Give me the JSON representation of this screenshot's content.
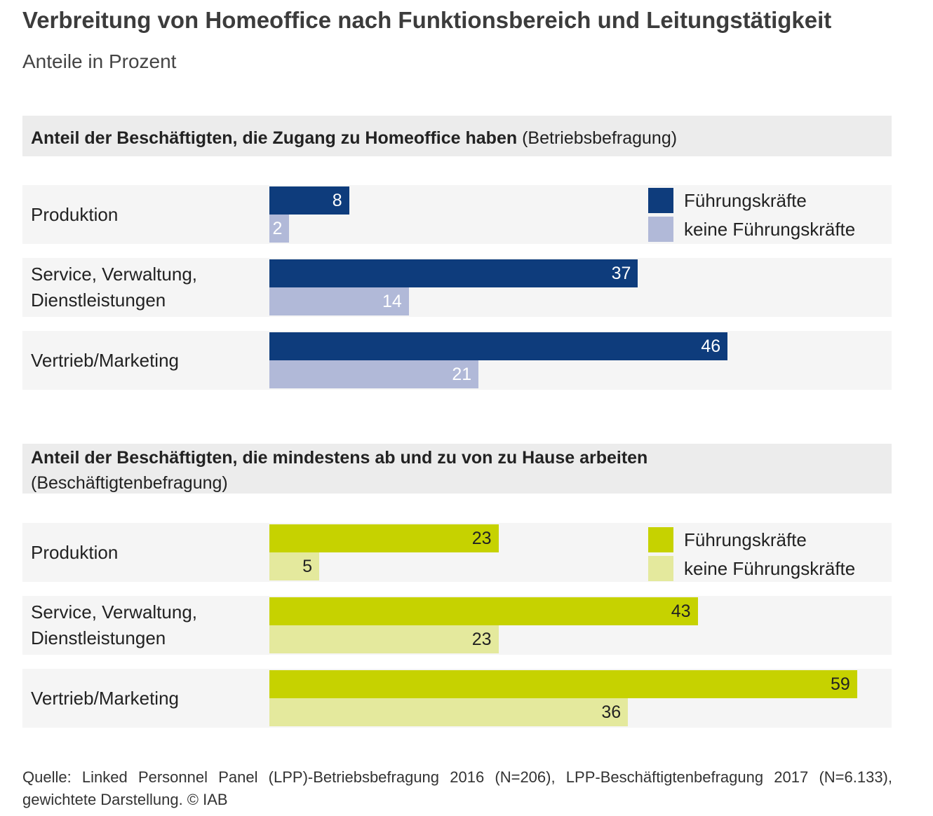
{
  "title": "Verbreitung von Homeoffice nach Funktionsbereich und Leitungstätigkeit",
  "subtitle": "Anteile in Prozent",
  "colors": {
    "panel1_lead": "#0e3c7c",
    "panel1_nonlead": "#b1b9d8",
    "panel2_lead": "#c6d200",
    "panel2_nonlead": "#e4e99d"
  },
  "chart_data": [
    {
      "type": "bar",
      "orientation": "horizontal",
      "title_bold": "Anteil der Beschäftigten, die Zugang zu Homeoffice haben",
      "title_note": "(Betriebsbefragung)",
      "categories": [
        "Produktion",
        "Service, Verwaltung, Dienstleistungen",
        "Vertrieb/Marketing"
      ],
      "series": [
        {
          "name": "Führungskräfte",
          "values": [
            8,
            37,
            46
          ]
        },
        {
          "name": "keine Führungskräfte",
          "values": [
            2,
            14,
            21
          ]
        }
      ],
      "xlim": [
        0,
        62
      ],
      "legend": "top-right"
    },
    {
      "type": "bar",
      "orientation": "horizontal",
      "title_bold": "Anteil der Beschäftigten, die mindestens ab und zu von zu Hause arbeiten",
      "title_note": "(Beschäftigtenbefragung)",
      "categories": [
        "Produktion",
        "Service, Verwaltung, Dienstleistungen",
        "Vertrieb/Marketing"
      ],
      "series": [
        {
          "name": "Führungskräfte",
          "values": [
            23,
            43,
            59
          ]
        },
        {
          "name": "keine Führungskräfte",
          "values": [
            5,
            23,
            36
          ]
        }
      ],
      "xlim": [
        0,
        62
      ],
      "legend": "top-right"
    }
  ],
  "source": "Quelle: Linked Personnel Panel (LPP)-Betriebsbefragung 2016 (N=206), LPP-Beschäftigtenbefragung 2017 (N=6.133), gewichtete Darstellung. © IAB"
}
